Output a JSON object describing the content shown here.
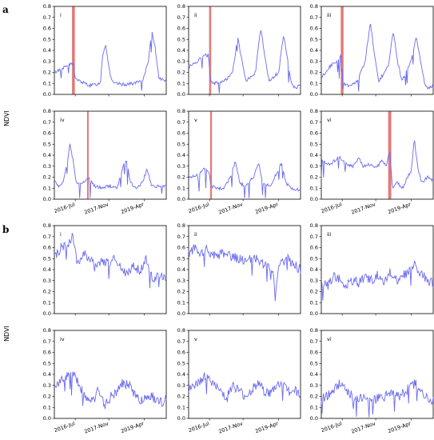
{
  "figure": {
    "section_labels": [
      "a",
      "b"
    ],
    "ylabel": "NDVI",
    "date_ticks": [
      "2016-Jul",
      "2017-Nov",
      "2019-Apr"
    ],
    "series_color": "#6b6bf0",
    "event_color": "#e06a6a"
  },
  "chart_data": [
    {
      "section": "a",
      "panel": "i",
      "type": "line",
      "ylabel": "NDVI",
      "ylim": [
        0,
        0.8
      ],
      "yticks": [
        "0.0",
        "0.1",
        "0.2",
        "0.3",
        "0.4",
        "0.5",
        "0.6",
        "0.7",
        "0.8"
      ],
      "highlight_band": [
        "2016-05-15",
        "2016-06-25"
      ],
      "keypoints": [
        [
          "2015-09-01",
          0.2
        ],
        [
          "2016-01-01",
          0.24
        ],
        [
          "2016-04-01",
          0.27
        ],
        [
          "2016-06-10",
          0.28
        ],
        [
          "2016-06-25",
          0.15
        ],
        [
          "2016-09-01",
          0.12
        ],
        [
          "2017-02-01",
          0.08
        ],
        [
          "2017-07-01",
          0.1
        ],
        [
          "2017-08-01",
          0.35
        ],
        [
          "2017-09-15",
          0.46
        ],
        [
          "2017-11-15",
          0.2
        ],
        [
          "2018-01-01",
          0.1
        ],
        [
          "2018-06-01",
          0.09
        ],
        [
          "2018-11-01",
          0.1
        ],
        [
          "2019-03-01",
          0.12
        ],
        [
          "2019-06-01",
          0.3
        ],
        [
          "2019-07-20",
          0.58
        ],
        [
          "2019-09-01",
          0.45
        ],
        [
          "2019-11-01",
          0.15
        ],
        [
          "2020-02-15",
          0.12
        ]
      ]
    },
    {
      "section": "a",
      "panel": "ii",
      "type": "line",
      "ylim": [
        0,
        0.8
      ],
      "yticks": [
        "0.0",
        "0.1",
        "0.2",
        "0.3",
        "0.4",
        "0.5",
        "0.6",
        "0.7",
        "0.8"
      ],
      "highlight_band": [
        "2016-06-25",
        "2016-07-25"
      ],
      "keypoints": [
        [
          "2015-09-01",
          0.25
        ],
        [
          "2016-01-01",
          0.3
        ],
        [
          "2016-04-01",
          0.35
        ],
        [
          "2016-06-15",
          0.36
        ],
        [
          "2016-07-15",
          0.12
        ],
        [
          "2016-10-01",
          0.1
        ],
        [
          "2017-02-01",
          0.12
        ],
        [
          "2017-06-01",
          0.2
        ],
        [
          "2017-08-15",
          0.52
        ],
        [
          "2017-10-01",
          0.35
        ],
        [
          "2017-12-15",
          0.12
        ],
        [
          "2018-05-01",
          0.2
        ],
        [
          "2018-07-15",
          0.6
        ],
        [
          "2018-09-15",
          0.35
        ],
        [
          "2018-11-15",
          0.12
        ],
        [
          "2019-04-01",
          0.2
        ],
        [
          "2019-06-15",
          0.55
        ],
        [
          "2019-08-15",
          0.3
        ],
        [
          "2019-10-01",
          0.1
        ],
        [
          "2019-12-01",
          0.05
        ],
        [
          "2020-02-15",
          0.09
        ]
      ]
    },
    {
      "section": "a",
      "panel": "iii",
      "type": "line",
      "ylim": [
        0,
        0.8
      ],
      "yticks": [
        "0.0",
        "0.1",
        "0.2",
        "0.3",
        "0.4",
        "0.5",
        "0.6",
        "0.7",
        "0.8"
      ],
      "highlight_band": [
        "2016-06-10",
        "2016-07-20"
      ],
      "keypoints": [
        [
          "2015-09-01",
          0.15
        ],
        [
          "2016-01-01",
          0.25
        ],
        [
          "2016-04-01",
          0.3
        ],
        [
          "2016-06-15",
          0.35
        ],
        [
          "2016-07-20",
          0.1
        ],
        [
          "2016-10-01",
          0.08
        ],
        [
          "2017-02-01",
          0.12
        ],
        [
          "2017-06-01",
          0.3
        ],
        [
          "2017-08-15",
          0.66
        ],
        [
          "2017-10-15",
          0.35
        ],
        [
          "2017-12-15",
          0.12
        ],
        [
          "2018-05-01",
          0.25
        ],
        [
          "2018-07-15",
          0.58
        ],
        [
          "2018-09-15",
          0.3
        ],
        [
          "2018-11-15",
          0.12
        ],
        [
          "2019-04-01",
          0.3
        ],
        [
          "2019-06-15",
          0.53
        ],
        [
          "2019-08-15",
          0.3
        ],
        [
          "2019-10-15",
          0.1
        ],
        [
          "2019-12-01",
          0.05
        ],
        [
          "2020-02-15",
          0.08
        ]
      ]
    },
    {
      "section": "a",
      "panel": "iv",
      "type": "line",
      "ylim": [
        0,
        0.8
      ],
      "yticks": [
        "0.0",
        "0.1",
        "0.2",
        "0.3",
        "0.4",
        "0.5",
        "0.6",
        "0.7",
        "0.8"
      ],
      "highlight_band": [
        "2016-12-20",
        "2017-01-05"
      ],
      "keypoints": [
        [
          "2015-09-01",
          0.18
        ],
        [
          "2015-11-01",
          0.12
        ],
        [
          "2016-01-01",
          0.15
        ],
        [
          "2016-03-01",
          0.3
        ],
        [
          "2016-04-15",
          0.5
        ],
        [
          "2016-06-01",
          0.35
        ],
        [
          "2016-07-15",
          0.15
        ],
        [
          "2016-10-01",
          0.14
        ],
        [
          "2017-01-01",
          0.2
        ],
        [
          "2017-04-01",
          0.12
        ],
        [
          "2017-08-01",
          0.1
        ],
        [
          "2017-11-01",
          0.12
        ],
        [
          "2018-03-01",
          0.1
        ],
        [
          "2018-06-01",
          0.3
        ],
        [
          "2018-07-15",
          0.36
        ],
        [
          "2018-09-15",
          0.15
        ],
        [
          "2018-12-01",
          0.1
        ],
        [
          "2019-03-01",
          0.15
        ],
        [
          "2019-05-15",
          0.27
        ],
        [
          "2019-07-15",
          0.12
        ],
        [
          "2020-02-15",
          0.12
        ]
      ]
    },
    {
      "section": "a",
      "panel": "v",
      "type": "line",
      "ylim": [
        0,
        0.8
      ],
      "yticks": [
        "0.0",
        "0.1",
        "0.2",
        "0.3",
        "0.4",
        "0.5",
        "0.6",
        "0.7",
        "0.8"
      ],
      "highlight_band": [
        "2016-07-10",
        "2016-08-05"
      ],
      "keypoints": [
        [
          "2015-09-01",
          0.2
        ],
        [
          "2016-01-01",
          0.22
        ],
        [
          "2016-04-01",
          0.28
        ],
        [
          "2016-06-15",
          0.25
        ],
        [
          "2016-08-01",
          0.12
        ],
        [
          "2016-10-01",
          0.1
        ],
        [
          "2017-02-01",
          0.1
        ],
        [
          "2017-05-01",
          0.2
        ],
        [
          "2017-07-15",
          0.35
        ],
        [
          "2017-09-15",
          0.15
        ],
        [
          "2017-12-01",
          0.12
        ],
        [
          "2018-04-01",
          0.2
        ],
        [
          "2018-06-15",
          0.33
        ],
        [
          "2018-08-15",
          0.15
        ],
        [
          "2018-12-01",
          0.12
        ],
        [
          "2019-03-15",
          0.25
        ],
        [
          "2019-05-15",
          0.33
        ],
        [
          "2019-07-15",
          0.15
        ],
        [
          "2019-10-01",
          0.1
        ],
        [
          "2020-02-15",
          0.08
        ]
      ]
    },
    {
      "section": "a",
      "panel": "vi",
      "type": "line",
      "ylim": [
        0,
        0.8
      ],
      "yticks": [
        "0.0",
        "0.1",
        "0.2",
        "0.3",
        "0.4",
        "0.5",
        "0.6",
        "0.7",
        "0.8"
      ],
      "highlight_band": [
        "2018-05-01",
        "2018-06-15"
      ],
      "keypoints": [
        [
          "2015-09-01",
          0.35
        ],
        [
          "2016-01-01",
          0.32
        ],
        [
          "2016-06-01",
          0.38
        ],
        [
          "2016-08-01",
          0.33
        ],
        [
          "2016-12-01",
          0.3
        ],
        [
          "2017-03-01",
          0.38
        ],
        [
          "2017-05-01",
          0.3
        ],
        [
          "2017-08-01",
          0.32
        ],
        [
          "2017-11-01",
          0.28
        ],
        [
          "2018-02-01",
          0.35
        ],
        [
          "2018-04-01",
          0.3
        ],
        [
          "2018-05-25",
          0.45
        ],
        [
          "2018-07-01",
          0.1
        ],
        [
          "2018-09-01",
          0.15
        ],
        [
          "2018-12-01",
          0.1
        ],
        [
          "2019-02-01",
          0.2
        ],
        [
          "2019-04-01",
          0.25
        ],
        [
          "2019-05-15",
          0.55
        ],
        [
          "2019-07-01",
          0.3
        ],
        [
          "2019-09-01",
          0.15
        ],
        [
          "2019-12-01",
          0.2
        ],
        [
          "2020-02-15",
          0.17
        ]
      ]
    },
    {
      "section": "b",
      "panel": "i",
      "type": "line",
      "ylabel": "NDVI",
      "ylim": [
        0,
        0.8
      ],
      "yticks": [
        "0.0",
        "0.1",
        "0.2",
        "0.3",
        "0.4",
        "0.5",
        "0.6",
        "0.7",
        "0.8"
      ],
      "keypoints": [
        [
          "2015-09-01",
          0.5
        ],
        [
          "2015-12-01",
          0.6
        ],
        [
          "2016-03-01",
          0.62
        ],
        [
          "2016-06-01",
          0.7
        ],
        [
          "2016-08-01",
          0.45
        ],
        [
          "2016-11-01",
          0.55
        ],
        [
          "2017-02-01",
          0.5
        ],
        [
          "2017-05-01",
          0.4
        ],
        [
          "2017-08-01",
          0.5
        ],
        [
          "2017-11-01",
          0.45
        ],
        [
          "2018-02-01",
          0.5
        ],
        [
          "2018-05-01",
          0.4
        ],
        [
          "2018-08-01",
          0.35
        ],
        [
          "2018-11-01",
          0.45
        ],
        [
          "2019-02-01",
          0.38
        ],
        [
          "2019-05-01",
          0.5
        ],
        [
          "2019-08-01",
          0.3
        ],
        [
          "2019-11-01",
          0.35
        ],
        [
          "2020-02-15",
          0.3
        ]
      ]
    },
    {
      "section": "b",
      "panel": "ii",
      "type": "line",
      "ylim": [
        0,
        0.8
      ],
      "yticks": [
        "0.0",
        "0.1",
        "0.2",
        "0.3",
        "0.4",
        "0.5",
        "0.6",
        "0.7",
        "0.8"
      ],
      "keypoints": [
        [
          "2015-09-01",
          0.55
        ],
        [
          "2015-12-01",
          0.6
        ],
        [
          "2016-03-01",
          0.55
        ],
        [
          "2016-06-01",
          0.58
        ],
        [
          "2016-09-01",
          0.52
        ],
        [
          "2017-01-01",
          0.55
        ],
        [
          "2017-05-01",
          0.52
        ],
        [
          "2017-09-01",
          0.5
        ],
        [
          "2018-01-01",
          0.48
        ],
        [
          "2018-05-01",
          0.5
        ],
        [
          "2018-09-01",
          0.45
        ],
        [
          "2019-01-01",
          0.42
        ],
        [
          "2019-02-15",
          0.12
        ],
        [
          "2019-04-01",
          0.45
        ],
        [
          "2019-08-01",
          0.5
        ],
        [
          "2019-11-01",
          0.45
        ],
        [
          "2020-02-15",
          0.4
        ]
      ]
    },
    {
      "section": "b",
      "panel": "iii",
      "type": "line",
      "ylim": [
        0,
        0.8
      ],
      "yticks": [
        "0.0",
        "0.1",
        "0.2",
        "0.3",
        "0.4",
        "0.5",
        "0.6",
        "0.7",
        "0.8"
      ],
      "keypoints": [
        [
          "2015-09-01",
          0.3
        ],
        [
          "2015-12-01",
          0.25
        ],
        [
          "2016-03-01",
          0.35
        ],
        [
          "2016-06-01",
          0.3
        ],
        [
          "2016-09-01",
          0.25
        ],
        [
          "2016-12-01",
          0.3
        ],
        [
          "2017-03-01",
          0.28
        ],
        [
          "2017-06-01",
          0.33
        ],
        [
          "2017-09-01",
          0.3
        ],
        [
          "2017-12-01",
          0.35
        ],
        [
          "2018-03-01",
          0.3
        ],
        [
          "2018-06-01",
          0.38
        ],
        [
          "2018-09-01",
          0.3
        ],
        [
          "2018-12-01",
          0.35
        ],
        [
          "2019-03-01",
          0.38
        ],
        [
          "2019-06-01",
          0.45
        ],
        [
          "2019-09-01",
          0.35
        ],
        [
          "2019-12-01",
          0.3
        ],
        [
          "2020-02-15",
          0.28
        ]
      ]
    },
    {
      "section": "b",
      "panel": "iv",
      "type": "line",
      "ylim": [
        0,
        0.8
      ],
      "yticks": [
        "0.0",
        "0.1",
        "0.2",
        "0.3",
        "0.4",
        "0.5",
        "0.6",
        "0.7",
        "0.8"
      ],
      "keypoints": [
        [
          "2015-09-01",
          0.3
        ],
        [
          "2015-12-01",
          0.35
        ],
        [
          "2016-03-01",
          0.38
        ],
        [
          "2016-06-01",
          0.4
        ],
        [
          "2016-09-01",
          0.3
        ],
        [
          "2016-12-01",
          0.2
        ],
        [
          "2017-03-01",
          0.15
        ],
        [
          "2017-06-01",
          0.25
        ],
        [
          "2017-09-01",
          0.12
        ],
        [
          "2017-12-01",
          0.2
        ],
        [
          "2018-03-01",
          0.25
        ],
        [
          "2018-06-01",
          0.33
        ],
        [
          "2018-09-01",
          0.3
        ],
        [
          "2018-12-01",
          0.2
        ],
        [
          "2019-03-01",
          0.15
        ],
        [
          "2019-06-01",
          0.22
        ],
        [
          "2019-09-01",
          0.18
        ],
        [
          "2019-12-01",
          0.15
        ],
        [
          "2020-02-15",
          0.17
        ]
      ]
    },
    {
      "section": "b",
      "panel": "v",
      "type": "line",
      "ylim": [
        0,
        0.8
      ],
      "yticks": [
        "0.0",
        "0.1",
        "0.2",
        "0.3",
        "0.4",
        "0.5",
        "0.6",
        "0.7",
        "0.8"
      ],
      "keypoints": [
        [
          "2015-09-01",
          0.25
        ],
        [
          "2015-12-01",
          0.3
        ],
        [
          "2016-03-01",
          0.35
        ],
        [
          "2016-06-01",
          0.42
        ],
        [
          "2016-09-01",
          0.3
        ],
        [
          "2016-12-01",
          0.25
        ],
        [
          "2017-03-01",
          0.2
        ],
        [
          "2017-06-01",
          0.3
        ],
        [
          "2017-09-01",
          0.25
        ],
        [
          "2017-12-01",
          0.2
        ],
        [
          "2018-03-01",
          0.25
        ],
        [
          "2018-06-01",
          0.33
        ],
        [
          "2018-09-01",
          0.25
        ],
        [
          "2018-12-01",
          0.22
        ],
        [
          "2019-03-01",
          0.3
        ],
        [
          "2019-06-01",
          0.32
        ],
        [
          "2019-09-01",
          0.25
        ],
        [
          "2019-12-01",
          0.25
        ],
        [
          "2020-02-15",
          0.2
        ]
      ]
    },
    {
      "section": "b",
      "panel": "vi",
      "type": "line",
      "ylim": [
        0,
        0.8
      ],
      "yticks": [
        "0.0",
        "0.1",
        "0.2",
        "0.3",
        "0.4",
        "0.5",
        "0.6",
        "0.7",
        "0.8"
      ],
      "keypoints": [
        [
          "2015-09-01",
          0.18
        ],
        [
          "2015-12-01",
          0.2
        ],
        [
          "2016-03-01",
          0.25
        ],
        [
          "2016-06-01",
          0.32
        ],
        [
          "2016-09-01",
          0.25
        ],
        [
          "2016-12-01",
          0.2
        ],
        [
          "2017-03-01",
          0.18
        ],
        [
          "2017-06-01",
          0.2
        ],
        [
          "2017-09-01",
          0.15
        ],
        [
          "2017-12-01",
          0.18
        ],
        [
          "2018-03-01",
          0.2
        ],
        [
          "2018-06-01",
          0.25
        ],
        [
          "2018-09-01",
          0.2
        ],
        [
          "2018-12-01",
          0.22
        ],
        [
          "2019-03-01",
          0.28
        ],
        [
          "2019-06-01",
          0.32
        ],
        [
          "2019-09-01",
          0.22
        ],
        [
          "2019-12-01",
          0.18
        ],
        [
          "2020-02-15",
          0.15
        ]
      ]
    }
  ]
}
